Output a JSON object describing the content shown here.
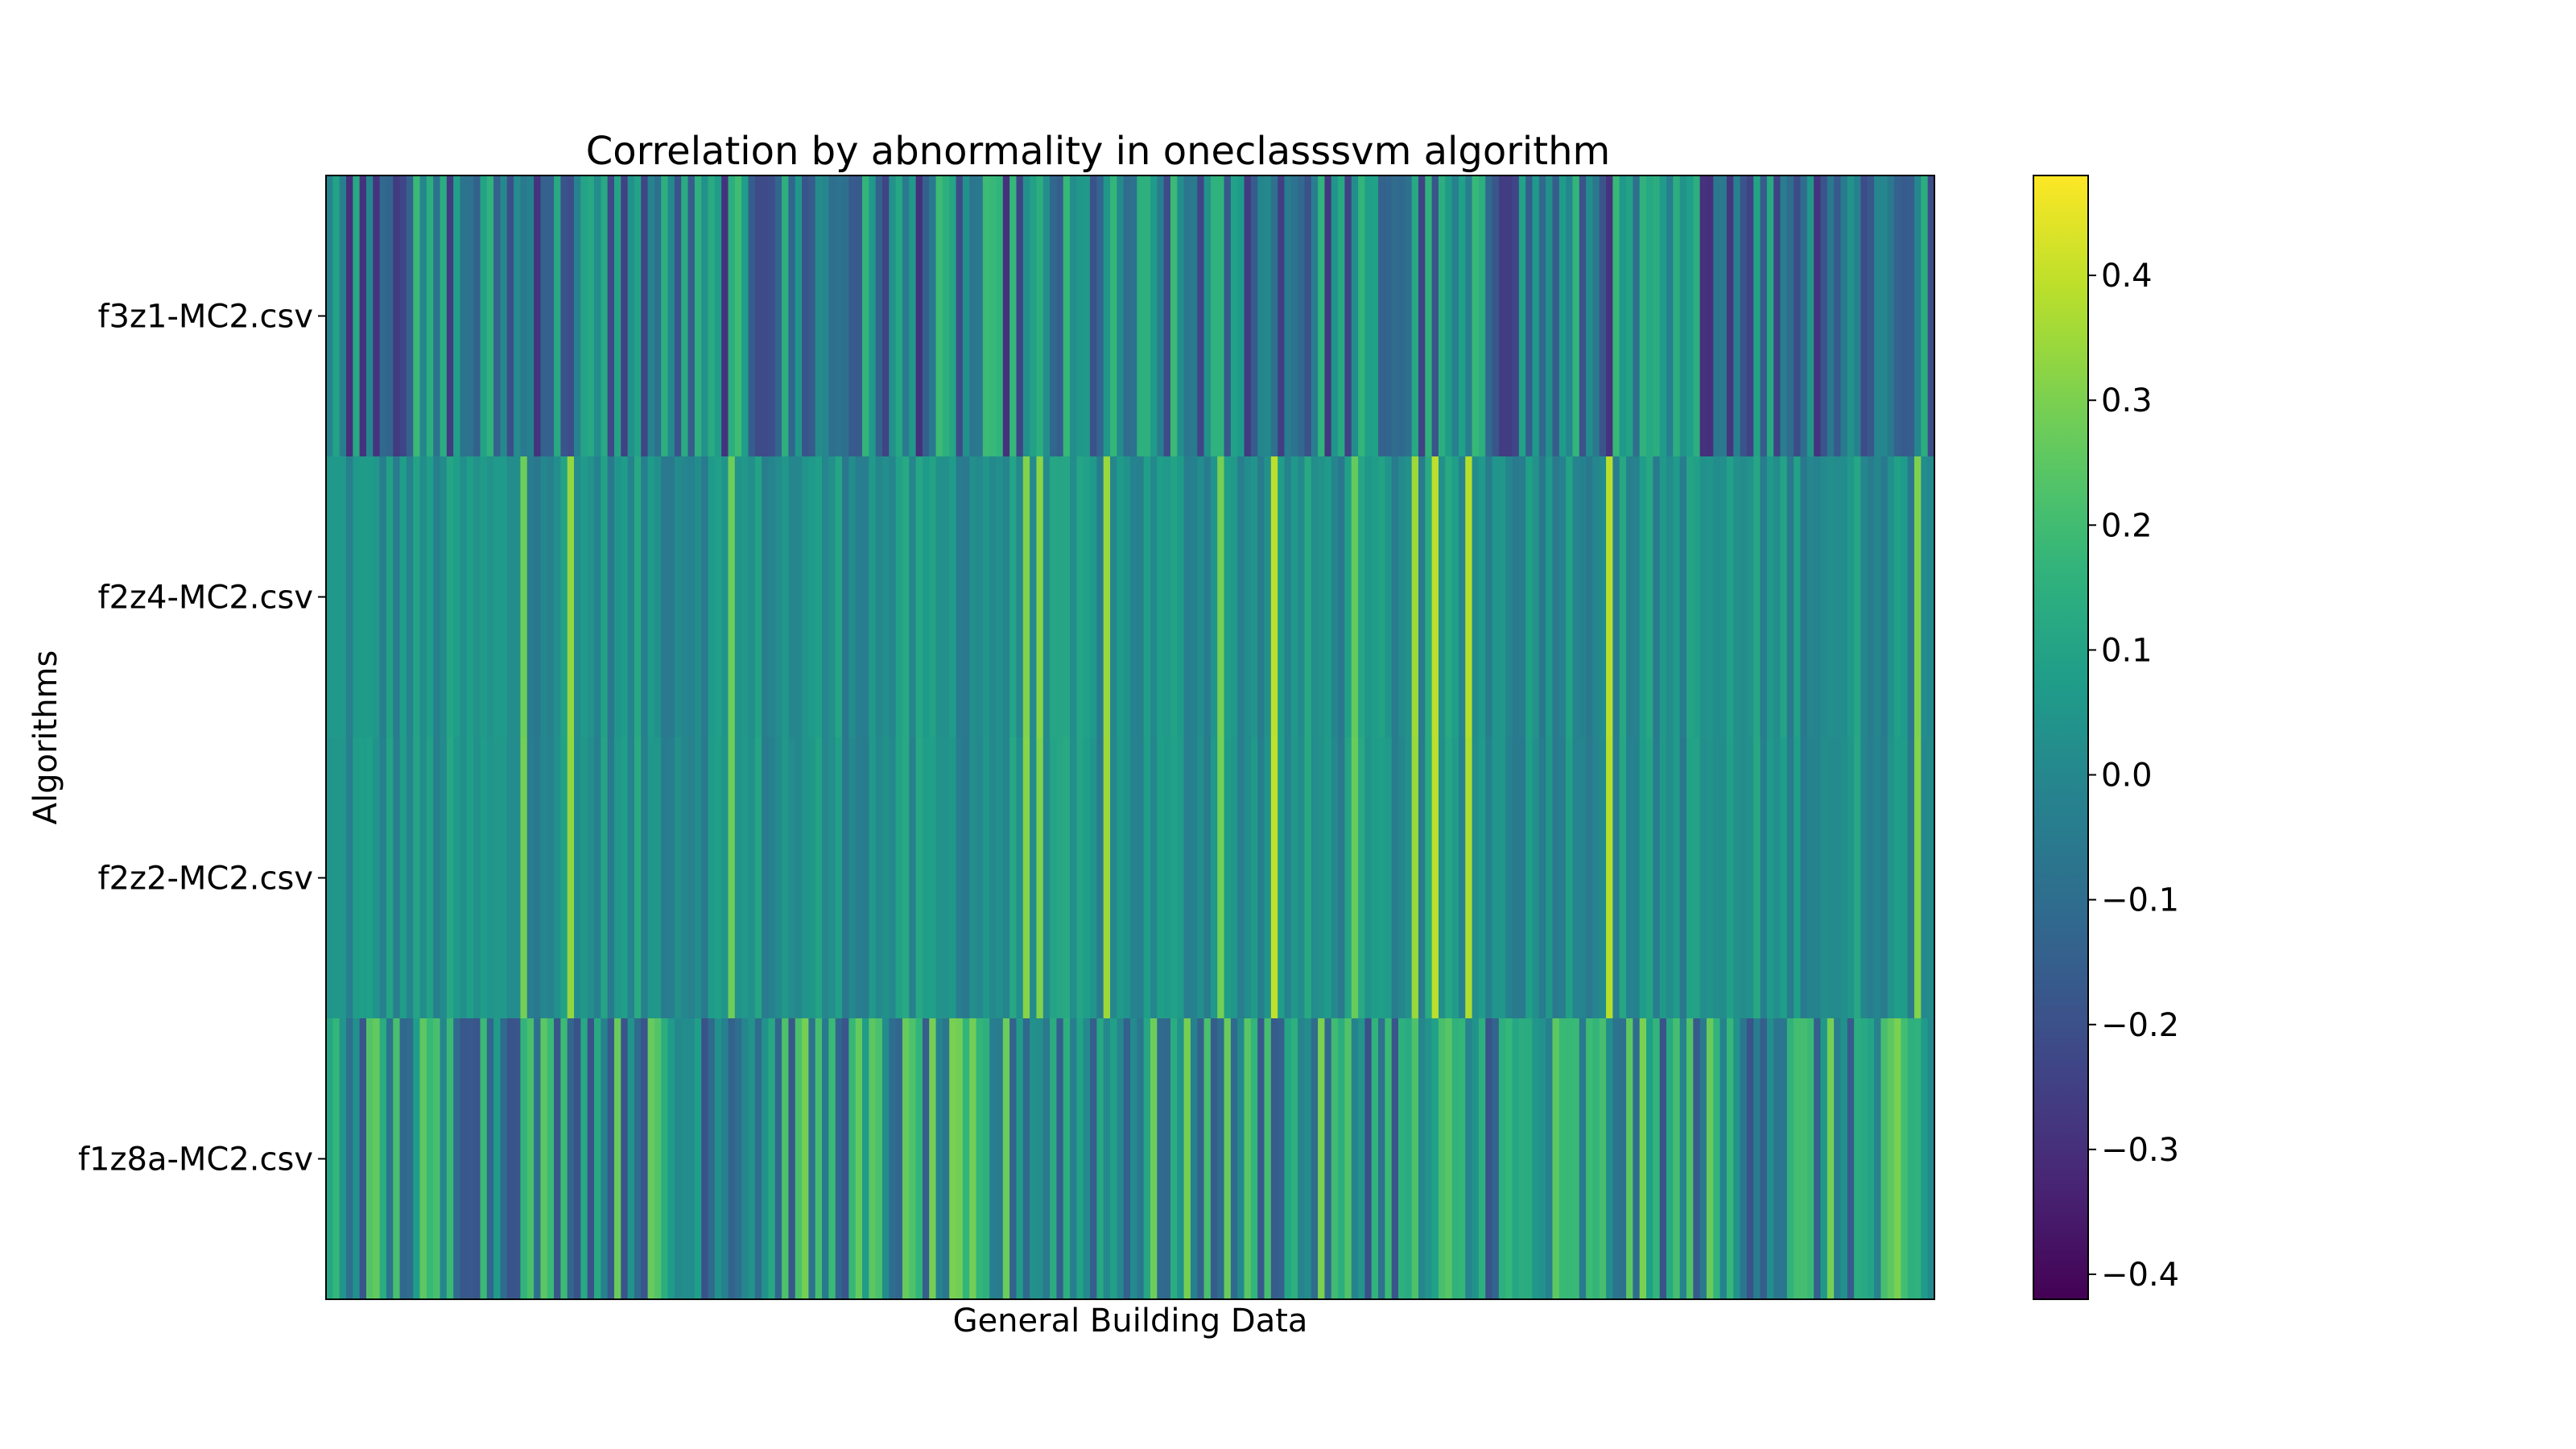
{
  "chart_data": {
    "type": "heatmap",
    "title": "Correlation by abnormality in oneclasssvm algorithm",
    "xlabel": "General Building Data",
    "ylabel": "Algorithms",
    "rows": [
      "f3z1-MC2.csv",
      "f2z4-MC2.csv",
      "f2z2-MC2.csv",
      "f1z8a-MC2.csv"
    ],
    "num_columns": 240,
    "row_value_profile": [
      {
        "row": "f3z1-MC2.csv",
        "typical_range": [
          -0.3,
          0.2
        ],
        "mean": 0.0
      },
      {
        "row": "f2z4-MC2.csv",
        "typical_range": [
          -0.15,
          0.4
        ],
        "mean": 0.05
      },
      {
        "row": "f2z2-MC2.csv",
        "typical_range": [
          -0.15,
          0.4
        ],
        "mean": 0.05
      },
      {
        "row": "f1z8a-MC2.csv",
        "typical_range": [
          -0.2,
          0.3
        ],
        "mean": 0.07
      }
    ],
    "colorbar": {
      "colormap": "viridis",
      "vmin": -0.42,
      "vmax": 0.48,
      "ticks": [
        0.4,
        0.3,
        0.2,
        0.1,
        0.0,
        -0.1,
        -0.2,
        -0.3,
        -0.4
      ],
      "tick_labels": [
        "0.4",
        "0.3",
        "0.2",
        "0.1",
        "0.0",
        "−0.1",
        "−0.2",
        "−0.3",
        "−0.4"
      ]
    },
    "grid": false,
    "legend": "colorbar-right"
  }
}
